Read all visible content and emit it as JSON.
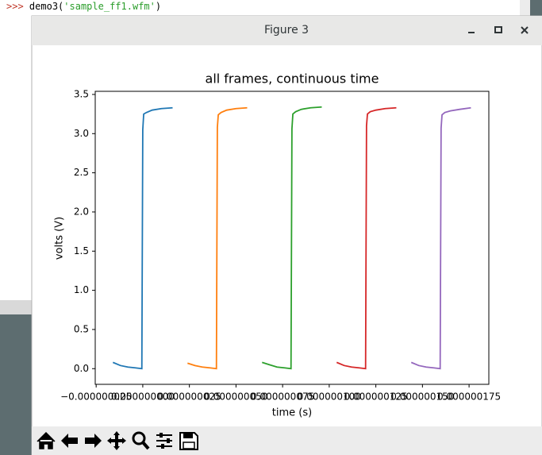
{
  "terminal": {
    "prompt": ">>>",
    "command": "demo3(",
    "argument": "'sample_ff1.wfm'",
    "close": ")"
  },
  "window": {
    "title": "Figure 3"
  },
  "chart_data": {
    "type": "line",
    "title": "all frames, continuous time",
    "x_label": "time (s)",
    "y_label": "volts (V)",
    "series": [
      {
        "color": "#1f77b4",
        "x": [
          -1.6e-08,
          -1.2e-08,
          -8e-09,
          -4e-09,
          -5e-10,
          0,
          5e-10,
          2e-09,
          5e-09,
          1e-08,
          1.6e-08
        ],
        "values": [
          0.08,
          0.04,
          0.02,
          0.01,
          0.0,
          3.05,
          3.25,
          3.27,
          3.3,
          3.32,
          3.33
        ]
      },
      {
        "color": "#ff7f0e",
        "x": [
          2.4e-08,
          2.8e-08,
          3.2e-08,
          3.6e-08,
          3.95e-08,
          4e-08,
          4.05e-08,
          4.2e-08,
          4.5e-08,
          5e-08,
          5.6e-08
        ],
        "values": [
          0.07,
          0.04,
          0.02,
          0.01,
          0.0,
          3.08,
          3.24,
          3.27,
          3.3,
          3.32,
          3.33
        ]
      },
      {
        "color": "#2ca02c",
        "x": [
          6.4e-08,
          6.8e-08,
          7.2e-08,
          7.6e-08,
          7.95e-08,
          8e-08,
          8.05e-08,
          8.2e-08,
          8.5e-08,
          9e-08,
          9.6e-08
        ],
        "values": [
          0.08,
          0.05,
          0.02,
          0.01,
          0.0,
          3.06,
          3.25,
          3.28,
          3.31,
          3.33,
          3.34
        ]
      },
      {
        "color": "#d62728",
        "x": [
          1.04e-07,
          1.08e-07,
          1.12e-07,
          1.16e-07,
          1.195e-07,
          1.2e-07,
          1.205e-07,
          1.22e-07,
          1.25e-07,
          1.3e-07,
          1.36e-07
        ],
        "values": [
          0.08,
          0.04,
          0.02,
          0.01,
          0.0,
          3.1,
          3.25,
          3.28,
          3.3,
          3.32,
          3.33
        ]
      },
      {
        "color": "#9467bd",
        "x": [
          1.44e-07,
          1.48e-07,
          1.52e-07,
          1.56e-07,
          1.595e-07,
          1.6e-07,
          1.605e-07,
          1.62e-07,
          1.65e-07,
          1.7e-07,
          1.76e-07
        ],
        "values": [
          0.08,
          0.04,
          0.02,
          0.01,
          0.0,
          3.07,
          3.24,
          3.27,
          3.29,
          3.31,
          3.33
        ]
      }
    ],
    "xlim": [
      -2.55e-08,
      1.856e-07
    ],
    "ylim": [
      -0.2,
      3.54
    ],
    "xticks": [
      {
        "value": -2.5e-08,
        "label": "−0.000000025"
      },
      {
        "value": 0,
        "label": "0.000000000"
      },
      {
        "value": 2.5e-08,
        "label": "0.000000025"
      },
      {
        "value": 5e-08,
        "label": "0.000000050"
      },
      {
        "value": 7.5e-08,
        "label": "0.000000075"
      },
      {
        "value": 1e-07,
        "label": "0.000000100"
      },
      {
        "value": 1.25e-07,
        "label": "0.000000125"
      },
      {
        "value": 1.5e-07,
        "label": "0.000000150"
      },
      {
        "value": 1.75e-07,
        "label": "0.000000175"
      }
    ],
    "yticks": [
      {
        "value": 0,
        "label": "0.0"
      },
      0.5,
      {
        "value": 1,
        "label": "1.0"
      },
      1.5,
      {
        "value": 2,
        "label": "2.0"
      },
      2.5,
      {
        "value": 3,
        "label": "3.0"
      },
      3.5
    ],
    "grid": false
  }
}
